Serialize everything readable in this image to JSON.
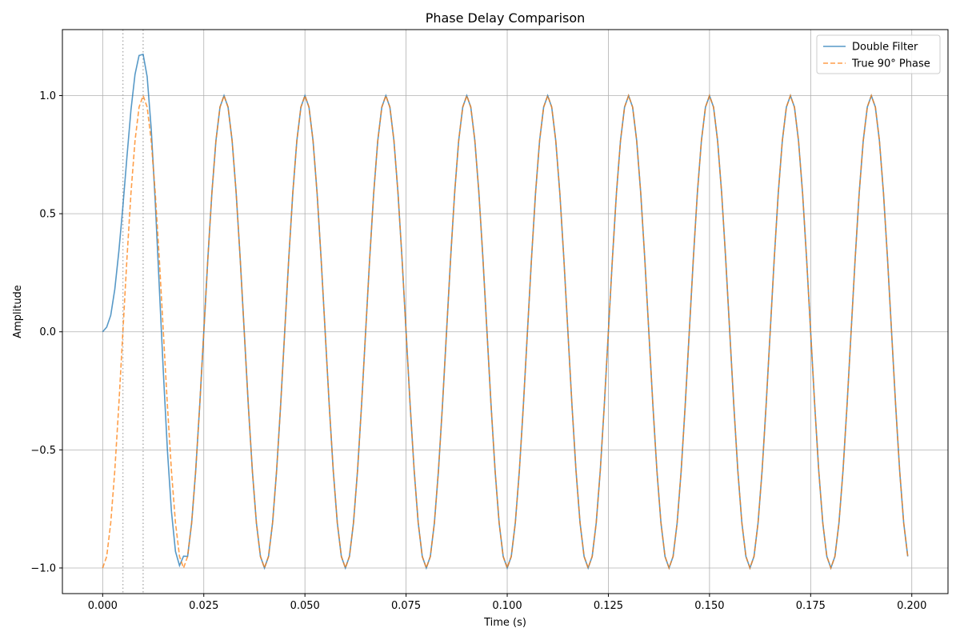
{
  "chart_data": {
    "type": "line",
    "title": "Phase Delay Comparison",
    "xlabel": "Time (s)",
    "ylabel": "Amplitude",
    "xlim": [
      -0.00995,
      0.20895
    ],
    "ylim": [
      -1.1085,
      1.2795
    ],
    "xticks": [
      0.0,
      0.025,
      0.05,
      0.075,
      0.1,
      0.125,
      0.15,
      0.175,
      0.2
    ],
    "xtick_labels": [
      "0.000",
      "0.025",
      "0.050",
      "0.075",
      "0.100",
      "0.125",
      "0.150",
      "0.175",
      "0.200"
    ],
    "yticks": [
      -1.0,
      -0.5,
      0.0,
      0.5,
      1.0
    ],
    "ytick_labels": [
      "−1.0",
      "−0.5",
      "0.0",
      "0.5",
      "1.0"
    ],
    "grid": true,
    "legend_position": "top-right",
    "vlines": [
      {
        "x": 0.005,
        "color": "#b0b0b0",
        "style": "dotted"
      },
      {
        "x": 0.01,
        "color": "#b0b0b0",
        "style": "dotted"
      }
    ],
    "series": [
      {
        "name": "Double Filter",
        "color": "#1f77b4",
        "style": "solid",
        "opacity": 0.75,
        "x": [
          0.0,
          0.001,
          0.002,
          0.003,
          0.004,
          0.005,
          0.006,
          0.007,
          0.008,
          0.009,
          0.01,
          0.011,
          0.012,
          0.013,
          0.014,
          0.015,
          0.016,
          0.017,
          0.018,
          0.019,
          0.02
        ],
        "values": [
          0.0,
          0.02,
          0.07,
          0.18,
          0.34,
          0.53,
          0.74,
          0.94,
          1.09,
          1.17,
          1.175,
          1.08,
          0.86,
          0.55,
          0.19,
          -0.17,
          -0.5,
          -0.76,
          -0.93,
          -0.99,
          -0.95
        ],
        "continuation": {
          "start": 0.021,
          "end": 0.199,
          "step": 0.001,
          "frequency_hz": 50,
          "phase": "cos(2*pi*50*t + pi)"
        }
      },
      {
        "name": "True 90° Phase",
        "color": "#ff7f0e",
        "style": "dashed",
        "opacity": 0.75,
        "generator": {
          "start": 0.0,
          "end": 0.199,
          "step": 0.001,
          "frequency_hz": 50,
          "phase": "cos(2*pi*50*t + pi)"
        }
      }
    ]
  }
}
